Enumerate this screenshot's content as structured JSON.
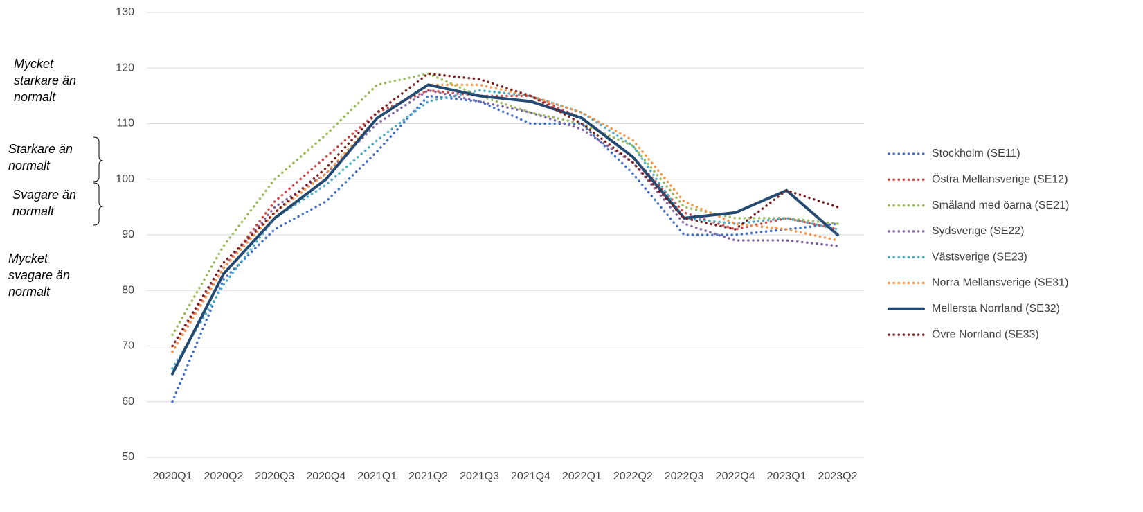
{
  "chart_data": {
    "type": "line",
    "categories": [
      "2020Q1",
      "2020Q2",
      "2020Q3",
      "2020Q4",
      "2021Q1",
      "2021Q2",
      "2021Q3",
      "2021Q4",
      "2022Q1",
      "2022Q2",
      "2022Q3",
      "2022Q4",
      "2023Q1",
      "2023Q2"
    ],
    "ylim": [
      50,
      130
    ],
    "yticks": [
      50,
      60,
      70,
      80,
      90,
      100,
      110,
      120,
      130
    ],
    "grid": true,
    "legend": "right",
    "annotations": [
      [
        "Mycket",
        "starkare än",
        "normalt"
      ],
      [
        "Starkare än",
        "normalt"
      ],
      [
        "Svagare än",
        "normalt"
      ],
      [
        "Mycket",
        "svagare än",
        "normalt"
      ]
    ],
    "series": [
      {
        "name": "Stockholm (SE11)",
        "color": "#4472c4",
        "style": "dotted",
        "values": [
          60,
          82,
          91,
          96,
          105,
          115,
          114,
          110,
          110,
          101,
          90,
          90,
          91,
          92
        ]
      },
      {
        "name": "Östra Mellansverige (SE12)",
        "color": "#d04a4a",
        "style": "dotted",
        "values": [
          70,
          84,
          96,
          104,
          112,
          116,
          115,
          115,
          111,
          104,
          94,
          91,
          93,
          91
        ]
      },
      {
        "name": "Småland med öarna (SE21)",
        "color": "#9bbb59",
        "style": "dotted",
        "values": [
          72,
          88,
          100,
          108,
          117,
          119,
          115,
          112,
          110,
          106,
          95,
          93,
          93,
          92
        ]
      },
      {
        "name": "Sydsverige (SE22)",
        "color": "#8064a2",
        "style": "dotted",
        "values": [
          69,
          84,
          95,
          101,
          110,
          116,
          114,
          112,
          109,
          103,
          92,
          89,
          89,
          88
        ]
      },
      {
        "name": "Västsverige (SE23)",
        "color": "#4bacc6",
        "style": "dotted",
        "values": [
          66,
          81,
          93,
          99,
          107,
          114,
          116,
          115,
          112,
          106,
          93,
          92,
          93,
          91
        ]
      },
      {
        "name": "Norra Mellansverige (SE31)",
        "color": "#f79646",
        "style": "dotted",
        "values": [
          69,
          84,
          94,
          101,
          111,
          117,
          117,
          115,
          112,
          107,
          96,
          92,
          91,
          89
        ]
      },
      {
        "name": "Mellersta Norrland (SE32)",
        "color": "#254a72",
        "style": "solid",
        "values": [
          65,
          83,
          93,
          100,
          111,
          117,
          115,
          114,
          111,
          104,
          93,
          94,
          98,
          90
        ]
      },
      {
        "name": "Övre Norrland (SE33)",
        "color": "#7b2323",
        "style": "dotted",
        "values": [
          70,
          85,
          94,
          102,
          112,
          119,
          118,
          115,
          110,
          103,
          93,
          91,
          98,
          95
        ]
      }
    ]
  }
}
